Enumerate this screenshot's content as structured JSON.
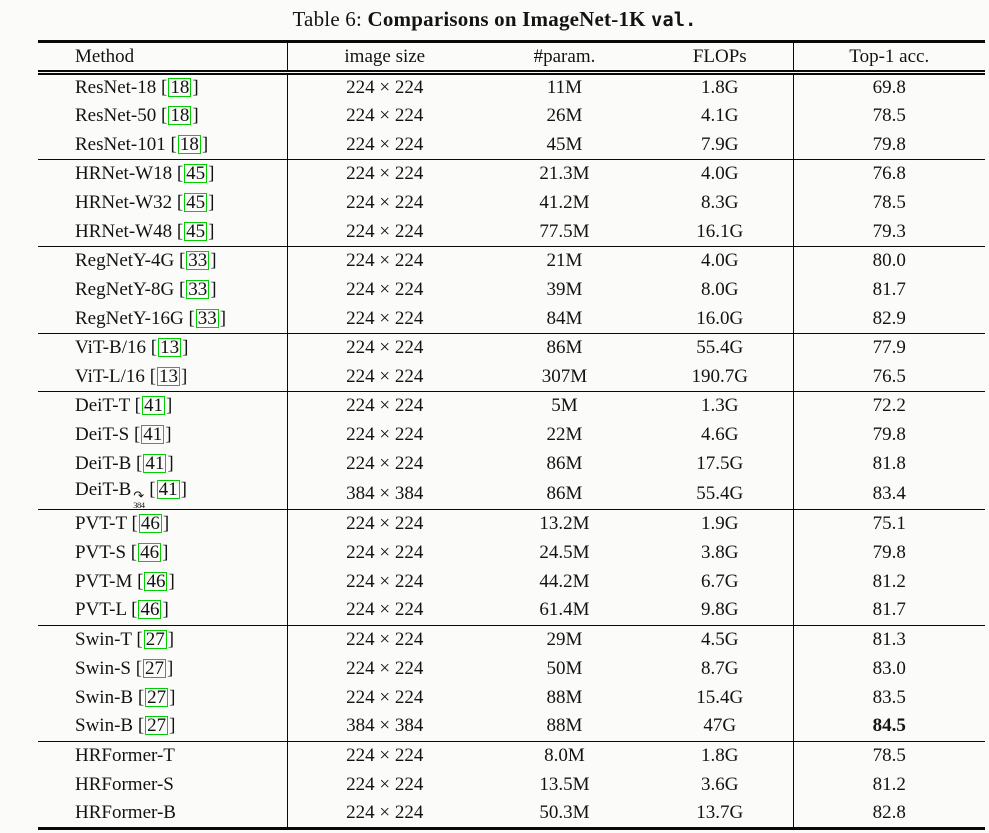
{
  "caption": {
    "prefix": "Table 6: ",
    "bold": "Comparisons on ImageNet-1K ",
    "code": "val."
  },
  "colors": {
    "citation_box": "#00d000",
    "rule": "#0a0a0a",
    "background": "#fbfbf9",
    "text": "#131313"
  },
  "table": {
    "headers": [
      "Method",
      "image size",
      "#param.",
      "FLOPs",
      "Top-1 acc."
    ],
    "groups": [
      {
        "name": "resnet",
        "rows": [
          {
            "method": "ResNet-18",
            "cite": "18",
            "size": "224 × 224",
            "params": "11M",
            "flops": "1.8G",
            "top1": "69.8"
          },
          {
            "method": "ResNet-50",
            "cite": "18",
            "size": "224 × 224",
            "params": "26M",
            "flops": "4.1G",
            "top1": "78.5"
          },
          {
            "method": "ResNet-101",
            "cite": "18",
            "size": "224 × 224",
            "params": "45M",
            "flops": "7.9G",
            "top1": "79.8"
          }
        ]
      },
      {
        "name": "hrnet",
        "rows": [
          {
            "method": "HRNet-W18",
            "cite": "45",
            "size": "224 × 224",
            "params": "21.3M",
            "flops": "4.0G",
            "top1": "76.8"
          },
          {
            "method": "HRNet-W32",
            "cite": "45",
            "size": "224 × 224",
            "params": "41.2M",
            "flops": "8.3G",
            "top1": "78.5"
          },
          {
            "method": "HRNet-W48",
            "cite": "45",
            "size": "224 × 224",
            "params": "77.5M",
            "flops": "16.1G",
            "top1": "79.3"
          }
        ]
      },
      {
        "name": "regnety",
        "rows": [
          {
            "method": "RegNetY-4G",
            "cite": "33",
            "size": "224 × 224",
            "params": "21M",
            "flops": "4.0G",
            "top1": "80.0"
          },
          {
            "method": "RegNetY-8G",
            "cite": "33",
            "size": "224 × 224",
            "params": "39M",
            "flops": "8.0G",
            "top1": "81.7"
          },
          {
            "method": "RegNetY-16G",
            "cite": "33",
            "size": "224 × 224",
            "params": "84M",
            "flops": "16.0G",
            "top1": "82.9"
          }
        ]
      },
      {
        "name": "vit",
        "rows": [
          {
            "method": "ViT-B/16",
            "cite": "13",
            "size": "224 × 224",
            "params": "86M",
            "flops": "55.4G",
            "top1": "77.9"
          },
          {
            "method": "ViT-L/16",
            "cite": "13",
            "size": "224 × 224",
            "params": "307M",
            "flops": "190.7G",
            "top1": "76.5"
          }
        ]
      },
      {
        "name": "deit",
        "rows": [
          {
            "method": "DeiT-T",
            "cite": "41",
            "size": "224 × 224",
            "params": "5M",
            "flops": "1.3G",
            "top1": "72.2"
          },
          {
            "method": "DeiT-S",
            "cite": "41",
            "size": "224 × 224",
            "params": "22M",
            "flops": "4.6G",
            "top1": "79.8"
          },
          {
            "method": "DeiT-B",
            "cite": "41",
            "size": "224 × 224",
            "params": "86M",
            "flops": "17.5G",
            "top1": "81.8"
          },
          {
            "method": "DeiT-B",
            "marker": {
              "arrow": "↷",
              "sub": "384"
            },
            "cite": "41",
            "size": "384 × 384",
            "params": "86M",
            "flops": "55.4G",
            "top1": "83.4"
          }
        ]
      },
      {
        "name": "pvt",
        "rows": [
          {
            "method": "PVT-T",
            "cite": "46",
            "size": "224 × 224",
            "params": "13.2M",
            "flops": "1.9G",
            "top1": "75.1"
          },
          {
            "method": "PVT-S",
            "cite": "46",
            "size": "224 × 224",
            "params": "24.5M",
            "flops": "3.8G",
            "top1": "79.8"
          },
          {
            "method": "PVT-M",
            "cite": "46",
            "size": "224 × 224",
            "params": "44.2M",
            "flops": "6.7G",
            "top1": "81.2"
          },
          {
            "method": "PVT-L",
            "cite": "46",
            "size": "224 × 224",
            "params": "61.4M",
            "flops": "9.8G",
            "top1": "81.7"
          }
        ]
      },
      {
        "name": "swin",
        "rows": [
          {
            "method": "Swin-T",
            "cite": "27",
            "size": "224 × 224",
            "params": "29M",
            "flops": "4.5G",
            "top1": "81.3"
          },
          {
            "method": "Swin-S",
            "cite": "27",
            "size": "224 × 224",
            "params": "50M",
            "flops": "8.7G",
            "top1": "83.0"
          },
          {
            "method": "Swin-B",
            "cite": "27",
            "size": "224 × 224",
            "params": "88M",
            "flops": "15.4G",
            "top1": "83.5"
          },
          {
            "method": "Swin-B",
            "cite": "27",
            "size": "384 × 384",
            "params": "88M",
            "flops": "47G",
            "top1": "84.5",
            "top1_bold": true
          }
        ]
      },
      {
        "name": "hrformer",
        "rows": [
          {
            "method": "HRFormer-T",
            "size": "224 × 224",
            "params": "8.0M",
            "flops": "1.8G",
            "top1": "78.5"
          },
          {
            "method": "HRFormer-S",
            "size": "224 × 224",
            "params": "13.5M",
            "flops": "3.6G",
            "top1": "81.2"
          },
          {
            "method": "HRFormer-B",
            "size": "224 × 224",
            "params": "50.3M",
            "flops": "13.7G",
            "top1": "82.8"
          }
        ]
      }
    ]
  }
}
